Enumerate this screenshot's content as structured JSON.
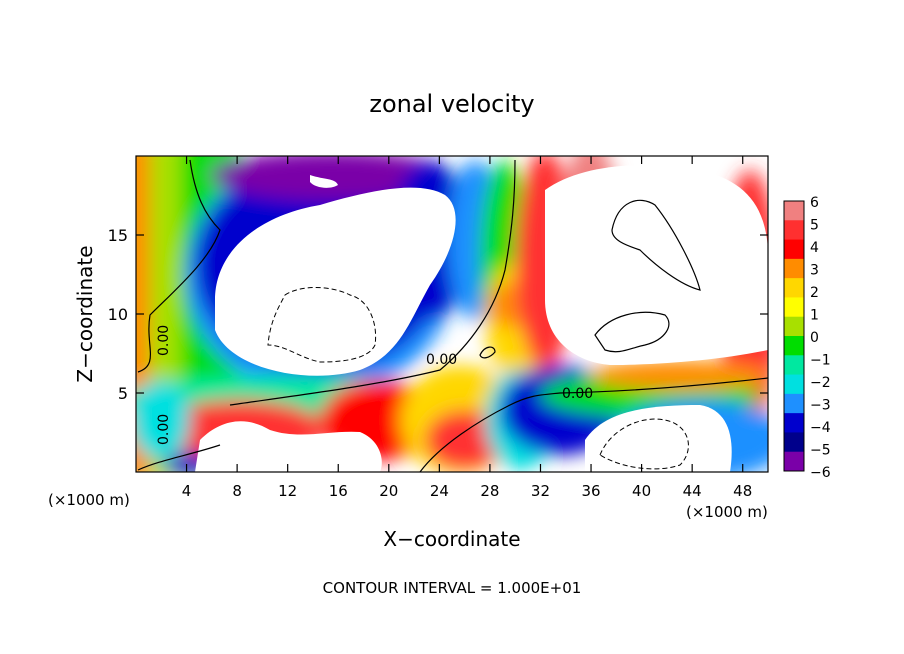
{
  "chart_data": {
    "type": "heatmap",
    "title": "zonal velocity",
    "xlabel": "X−coordinate",
    "ylabel": "Z−coordinate",
    "x_unit_left": "(×1000 m)",
    "x_unit_right": "(×1000 m)",
    "xlim": [
      0,
      50
    ],
    "ylim": [
      0,
      20
    ],
    "x_ticks": [
      4,
      8,
      12,
      16,
      20,
      24,
      28,
      32,
      36,
      40,
      44,
      48
    ],
    "y_ticks": [
      5,
      10,
      15
    ],
    "colorbar": {
      "levels": [
        6,
        5,
        4,
        3,
        2,
        1,
        0,
        -1,
        -2,
        -3,
        -4,
        -5,
        -6
      ],
      "labels": [
        "6",
        "5",
        "4",
        "3",
        "2",
        "1",
        "0",
        "−1",
        "−2",
        "−3",
        "−4",
        "−5",
        "−6"
      ],
      "colors": [
        "#f08080",
        "#ff3030",
        "#ff0000",
        "#ff8c00",
        "#ffd700",
        "#ffff00",
        "#a8e000",
        "#00dd00",
        "#00e8a0",
        "#00e0e0",
        "#1e90ff",
        "#0000cd",
        "#00008b",
        "#7a00a8"
      ]
    },
    "contour_labels": [
      "0.00",
      "0.00",
      "0.00",
      "0.00"
    ],
    "footer": "CONTOUR INTERVAL = 1.000E+01"
  }
}
